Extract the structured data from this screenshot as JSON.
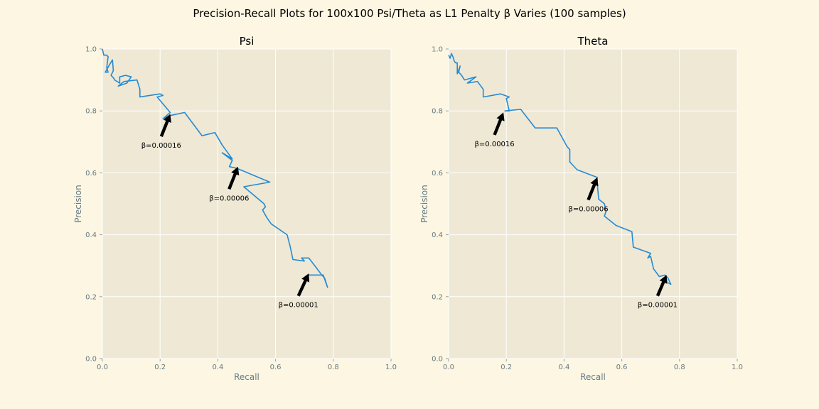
{
  "figure": {
    "title": "Precision-Recall Plots for 100x100 Psi/Theta as L1 Penalty β Varies (100 samples)"
  },
  "colors": {
    "background": "#fdf6e3",
    "plot_area": "#eee8d5",
    "grid": "#ffffff",
    "line": "#268bd2",
    "tick_text": "#657b83",
    "arrow": "#000000"
  },
  "chart_data": [
    {
      "type": "line",
      "title": "Psi",
      "xlabel": "Recall",
      "ylabel": "Precision",
      "xlim": [
        0,
        1
      ],
      "ylim": [
        0,
        1
      ],
      "xticks": [
        "0.0",
        "0.2",
        "0.4",
        "0.6",
        "0.8",
        "1.0"
      ],
      "yticks": [
        "0.0",
        "0.2",
        "0.4",
        "0.6",
        "0.8",
        "1.0"
      ],
      "grid": true,
      "series": [
        {
          "x": [
            0.0,
            0.005,
            0.015,
            0.02,
            0.015,
            0.02,
            0.01,
            0.025,
            0.035,
            0.038,
            0.03,
            0.04,
            0.042,
            0.06,
            0.06,
            0.08,
            0.1,
            0.085,
            0.055,
            0.075,
            0.12,
            0.13,
            0.13,
            0.2,
            0.21,
            0.19,
            0.235,
            0.21,
            0.235,
            0.285,
            0.345,
            0.39,
            0.415,
            0.45,
            0.415,
            0.45,
            0.44,
            0.465,
            0.58,
            0.49,
            0.56,
            0.565,
            0.555,
            0.57,
            0.585,
            0.64,
            0.65,
            0.66,
            0.7,
            0.69,
            0.715,
            0.74,
            0.76,
            0.77,
            0.78,
            0.765,
            0.71
          ],
          "y": [
            1.0,
            0.98,
            0.98,
            0.975,
            0.94,
            0.925,
            0.925,
            0.95,
            0.965,
            0.93,
            0.915,
            0.905,
            0.9,
            0.89,
            0.91,
            0.915,
            0.91,
            0.89,
            0.88,
            0.895,
            0.9,
            0.87,
            0.845,
            0.855,
            0.85,
            0.845,
            0.795,
            0.775,
            0.785,
            0.795,
            0.72,
            0.73,
            0.69,
            0.645,
            0.665,
            0.64,
            0.62,
            0.615,
            0.57,
            0.555,
            0.5,
            0.49,
            0.48,
            0.455,
            0.435,
            0.4,
            0.365,
            0.32,
            0.315,
            0.325,
            0.325,
            0.295,
            0.27,
            0.26,
            0.23,
            0.27,
            0.27
          ]
        }
      ],
      "annotations": [
        {
          "text": "β=0.00016",
          "x": 0.235,
          "y": 0.79,
          "text_x": 0.135,
          "text_y": 0.69
        },
        {
          "text": "β=0.00006",
          "x": 0.47,
          "y": 0.62,
          "text_x": 0.37,
          "text_y": 0.52
        },
        {
          "text": "β=0.00001",
          "x": 0.715,
          "y": 0.275,
          "text_x": 0.61,
          "text_y": 0.175
        }
      ]
    },
    {
      "type": "line",
      "title": "Theta",
      "xlabel": "Recall",
      "ylabel": "Precision",
      "xlim": [
        0,
        1
      ],
      "ylim": [
        0,
        1
      ],
      "xticks": [
        "0.0",
        "0.2",
        "0.4",
        "0.6",
        "0.8",
        "1.0"
      ],
      "yticks": [
        "0.0",
        "0.2",
        "0.4",
        "0.6",
        "0.8",
        "1.0"
      ],
      "grid": true,
      "series": [
        {
          "x": [
            0.0,
            0.005,
            0.01,
            0.015,
            0.02,
            0.025,
            0.03,
            0.03,
            0.04,
            0.035,
            0.045,
            0.055,
            0.075,
            0.095,
            0.065,
            0.1,
            0.12,
            0.12,
            0.18,
            0.21,
            0.2,
            0.21,
            0.195,
            0.25,
            0.3,
            0.375,
            0.41,
            0.42,
            0.42,
            0.43,
            0.445,
            0.515,
            0.515,
            0.52,
            0.54,
            0.545,
            0.54,
            0.58,
            0.635,
            0.64,
            0.7,
            0.69,
            0.7,
            0.71,
            0.73,
            0.75,
            0.76,
            0.77,
            0.76
          ],
          "y": [
            0.98,
            0.97,
            0.985,
            0.975,
            0.96,
            0.955,
            0.955,
            0.92,
            0.945,
            0.925,
            0.915,
            0.9,
            0.905,
            0.91,
            0.89,
            0.895,
            0.87,
            0.845,
            0.855,
            0.845,
            0.84,
            0.8,
            0.8,
            0.805,
            0.745,
            0.745,
            0.685,
            0.675,
            0.635,
            0.625,
            0.61,
            0.585,
            0.565,
            0.515,
            0.5,
            0.475,
            0.46,
            0.43,
            0.41,
            0.36,
            0.34,
            0.325,
            0.33,
            0.29,
            0.265,
            0.27,
            0.26,
            0.24,
            0.245
          ]
        }
      ],
      "annotations": [
        {
          "text": "β=0.00016",
          "x": 0.19,
          "y": 0.795,
          "text_x": 0.09,
          "text_y": 0.695
        },
        {
          "text": "β=0.00006",
          "x": 0.515,
          "y": 0.585,
          "text_x": 0.415,
          "text_y": 0.485
        },
        {
          "text": "β=0.00001",
          "x": 0.755,
          "y": 0.27,
          "text_x": 0.655,
          "text_y": 0.175
        }
      ]
    }
  ]
}
